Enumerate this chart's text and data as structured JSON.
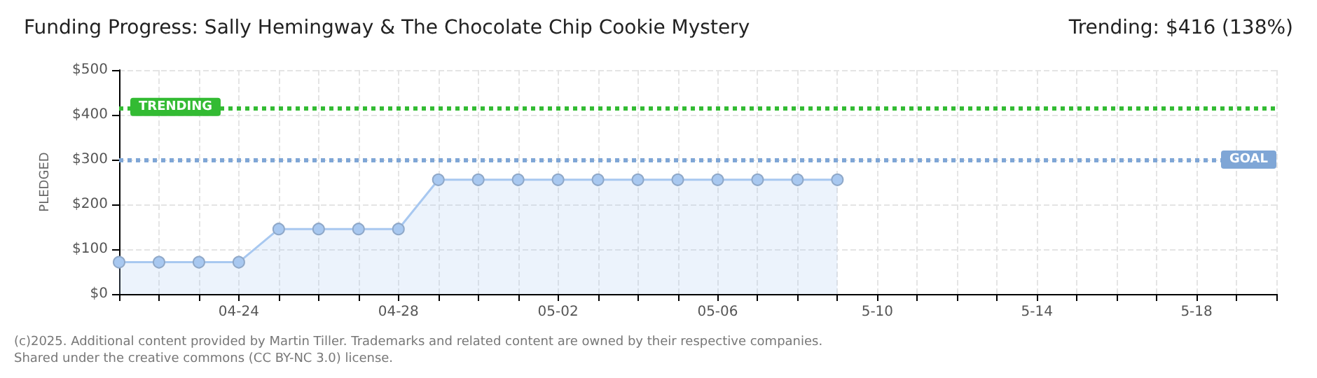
{
  "chart_data": {
    "type": "area",
    "title": "Funding Progress: Sally Hemingway & The Chocolate Chip Cookie Mystery",
    "subtitle": "Trending: $416 (138%)",
    "ylabel": "PLEDGED",
    "x": [
      "--04-21",
      "--04-22",
      "--04-23",
      "--04-24",
      "--04-25",
      "--04-26",
      "--04-27",
      "--04-28",
      "--04-29",
      "--04-30",
      "--05-01",
      "--05-02",
      "--05-03",
      "--05-04",
      "--05-05",
      "--05-06",
      "--05-07",
      "--05-08",
      "--05-09"
    ],
    "series": [
      {
        "color": "#a8c8f0",
        "values": [
          71,
          71,
          71,
          71,
          145,
          145,
          145,
          145,
          255,
          255,
          255,
          255,
          255,
          255,
          255,
          255,
          255,
          255,
          255
        ]
      }
    ],
    "xlim": [
      "--04-21",
      "--05-20"
    ],
    "xticks": [
      {
        "value": "--04-21",
        "label": null
      },
      {
        "value": "--04-22",
        "label": null
      },
      {
        "value": "--04-23",
        "label": null
      },
      {
        "value": "--04-24",
        "label": "04-24"
      },
      {
        "value": "--04-25",
        "label": null
      },
      {
        "value": "--04-26",
        "label": null
      },
      {
        "value": "--04-27",
        "label": null
      },
      {
        "value": "--04-28",
        "label": "04-28"
      },
      {
        "value": "--04-29",
        "label": null
      },
      {
        "value": "--04-30",
        "label": null
      },
      {
        "value": "--05-01",
        "label": null
      },
      {
        "value": "--05-02",
        "label": "05-02"
      },
      {
        "value": "--05-03",
        "label": null
      },
      {
        "value": "--05-04",
        "label": null
      },
      {
        "value": "--05-05",
        "label": null
      },
      {
        "value": "--05-06",
        "label": "05-06"
      },
      {
        "value": "--05-07",
        "label": null
      },
      {
        "value": "--05-08",
        "label": null
      },
      {
        "value": "--05-09",
        "label": null
      },
      {
        "value": "--05-10",
        "label": "5-10"
      },
      {
        "value": "--05-11",
        "label": null
      },
      {
        "value": "--05-12",
        "label": null
      },
      {
        "value": "--05-13",
        "label": null
      },
      {
        "value": "--05-14",
        "label": "5-14"
      },
      {
        "value": "--05-15",
        "label": null
      },
      {
        "value": "--05-16",
        "label": null
      },
      {
        "value": "--05-17",
        "label": null
      },
      {
        "value": "--05-18",
        "label": "5-18"
      },
      {
        "value": "--05-19",
        "label": null
      },
      {
        "value": "--05-20",
        "label": null
      }
    ],
    "ylim": [
      0,
      500
    ],
    "yticks": [
      {
        "value": 0,
        "label": "$0"
      },
      {
        "value": 100,
        "label": "$100"
      },
      {
        "value": 200,
        "label": "$200"
      },
      {
        "value": 300,
        "label": "$300"
      },
      {
        "value": 400,
        "label": "$400"
      },
      {
        "value": 500,
        "label": "$500"
      }
    ],
    "grid": true,
    "marker": "circle",
    "line_style": "solid",
    "ref_lines": [
      {
        "axis": "y",
        "value": 416,
        "label": "TRENDING",
        "color": "#33bb33",
        "line_style": "dotted"
      },
      {
        "axis": "y",
        "value": 300,
        "label": "GOAL",
        "color": "#7fa6d6",
        "line_style": "dotted"
      }
    ],
    "annotations": [
      "(c)2025. Additional content provided by Martin Tiller. Trademarks and related content are owned by their respective companies.",
      "Shared under the creative commons (CC BY-NC 3.0) license."
    ]
  }
}
